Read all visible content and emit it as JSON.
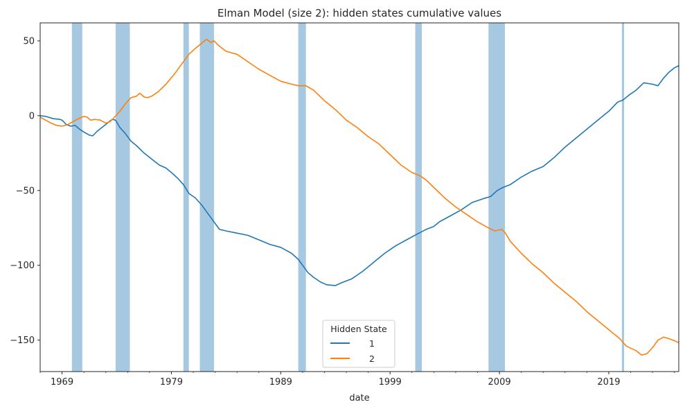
{
  "chart_data": {
    "type": "line",
    "title": "Elman Model (size 2): hidden states cumulative values",
    "xlabel": "date",
    "ylabel": "",
    "xlim": [
      1967.0,
      2025.4
    ],
    "ylim": [
      -171,
      62
    ],
    "x_ticks": [
      1969,
      1979,
      1989,
      1999,
      2009,
      2019
    ],
    "x_tick_labels": [
      "1969",
      "1979",
      "1989",
      "1999",
      "2009",
      "2019"
    ],
    "y_ticks": [
      50,
      0,
      -50,
      -100,
      -150
    ],
    "y_tick_labels": [
      "50",
      "0",
      "−50",
      "−100",
      "−150"
    ],
    "grid": false,
    "legend": {
      "title": "Hidden State",
      "placement": "lower-center"
    },
    "shaded_periods": [
      [
        1969.9,
        1970.85
      ],
      [
        1973.9,
        1975.2
      ],
      [
        1980.1,
        1980.6
      ],
      [
        1981.6,
        1982.9
      ],
      [
        1990.6,
        1991.3
      ],
      [
        2001.3,
        2001.9
      ],
      [
        2008.0,
        2009.5
      ],
      [
        2020.2,
        2020.4
      ]
    ],
    "shade_color": "#a6c8e1",
    "series": [
      {
        "name": "1",
        "color": "#1f77b4",
        "points": [
          [
            1967.0,
            0
          ],
          [
            1967.5,
            -0.5
          ],
          [
            1968.2,
            -2
          ],
          [
            1968.8,
            -2.5
          ],
          [
            1969.0,
            -3
          ],
          [
            1969.4,
            -6
          ],
          [
            1969.8,
            -7
          ],
          [
            1970.2,
            -6.5
          ],
          [
            1970.6,
            -9
          ],
          [
            1971.0,
            -11
          ],
          [
            1971.5,
            -13
          ],
          [
            1971.8,
            -13.5
          ],
          [
            1972.2,
            -10.5
          ],
          [
            1972.8,
            -7
          ],
          [
            1973.3,
            -4
          ],
          [
            1973.6,
            -2.5
          ],
          [
            1973.9,
            -3
          ],
          [
            1974.3,
            -8
          ],
          [
            1974.8,
            -12
          ],
          [
            1975.3,
            -17
          ],
          [
            1975.8,
            -20
          ],
          [
            1976.5,
            -25
          ],
          [
            1977.2,
            -29
          ],
          [
            1977.9,
            -33
          ],
          [
            1978.5,
            -35
          ],
          [
            1979.0,
            -38
          ],
          [
            1979.6,
            -42
          ],
          [
            1980.1,
            -46
          ],
          [
            1980.6,
            -52
          ],
          [
            1981.2,
            -55
          ],
          [
            1981.8,
            -60
          ],
          [
            1982.4,
            -66
          ],
          [
            1982.9,
            -71
          ],
          [
            1983.4,
            -76
          ],
          [
            1984.0,
            -77
          ],
          [
            1985.0,
            -78.5
          ],
          [
            1986.0,
            -80
          ],
          [
            1987.0,
            -83
          ],
          [
            1988.0,
            -86
          ],
          [
            1989.0,
            -88
          ],
          [
            1990.0,
            -92
          ],
          [
            1990.6,
            -96
          ],
          [
            1991.0,
            -100
          ],
          [
            1991.5,
            -105
          ],
          [
            1992.0,
            -108
          ],
          [
            1992.6,
            -111
          ],
          [
            1993.2,
            -113
          ],
          [
            1994.0,
            -113.5
          ],
          [
            1994.6,
            -111.5
          ],
          [
            1995.5,
            -109
          ],
          [
            1996.5,
            -104
          ],
          [
            1997.5,
            -98
          ],
          [
            1998.5,
            -92
          ],
          [
            1999.5,
            -87
          ],
          [
            2000.5,
            -83
          ],
          [
            2001.5,
            -79
          ],
          [
            2002.3,
            -76
          ],
          [
            2003.0,
            -74
          ],
          [
            2003.5,
            -71
          ],
          [
            2004.5,
            -67
          ],
          [
            2005.5,
            -63
          ],
          [
            2006.5,
            -58
          ],
          [
            2007.5,
            -55.5
          ],
          [
            2008.2,
            -54
          ],
          [
            2008.8,
            -50
          ],
          [
            2009.3,
            -48
          ],
          [
            2010.0,
            -46
          ],
          [
            2011.0,
            -41
          ],
          [
            2012.0,
            -37
          ],
          [
            2013.0,
            -34
          ],
          [
            2014.0,
            -28
          ],
          [
            2015.0,
            -21
          ],
          [
            2016.0,
            -15
          ],
          [
            2017.0,
            -9
          ],
          [
            2018.0,
            -3
          ],
          [
            2019.0,
            3
          ],
          [
            2019.8,
            9
          ],
          [
            2020.3,
            10.5
          ],
          [
            2020.8,
            13.5
          ],
          [
            2021.5,
            17
          ],
          [
            2022.2,
            22
          ],
          [
            2023.0,
            21
          ],
          [
            2023.5,
            20
          ],
          [
            2024.0,
            25
          ],
          [
            2024.5,
            29
          ],
          [
            2025.0,
            32
          ],
          [
            2025.3,
            33
          ],
          [
            2025.8,
            35
          ],
          [
            2026.2,
            37
          ]
        ]
      },
      {
        "name": "2",
        "color": "#ff7f0e",
        "points": [
          [
            1967.0,
            -1
          ],
          [
            1967.5,
            -3
          ],
          [
            1968.0,
            -5
          ],
          [
            1968.5,
            -6.5
          ],
          [
            1969.0,
            -7
          ],
          [
            1969.5,
            -6
          ],
          [
            1970.0,
            -4
          ],
          [
            1970.5,
            -2
          ],
          [
            1971.0,
            -0.5
          ],
          [
            1971.3,
            -1
          ],
          [
            1971.6,
            -3
          ],
          [
            1972.0,
            -2.5
          ],
          [
            1972.5,
            -3
          ],
          [
            1973.0,
            -5
          ],
          [
            1973.4,
            -4
          ],
          [
            1973.8,
            -1
          ],
          [
            1974.3,
            3
          ],
          [
            1974.8,
            8
          ],
          [
            1975.3,
            12
          ],
          [
            1975.8,
            13
          ],
          [
            1976.1,
            15
          ],
          [
            1976.5,
            12.5
          ],
          [
            1976.8,
            12
          ],
          [
            1977.2,
            13
          ],
          [
            1977.8,
            16
          ],
          [
            1978.5,
            21
          ],
          [
            1979.3,
            28
          ],
          [
            1980.0,
            35
          ],
          [
            1980.6,
            41
          ],
          [
            1981.2,
            45
          ],
          [
            1981.7,
            48
          ],
          [
            1982.2,
            51
          ],
          [
            1982.6,
            49
          ],
          [
            1982.9,
            50
          ],
          [
            1983.3,
            47
          ],
          [
            1984.0,
            43
          ],
          [
            1985.0,
            41
          ],
          [
            1986.0,
            36
          ],
          [
            1987.0,
            31
          ],
          [
            1988.0,
            27
          ],
          [
            1989.0,
            23
          ],
          [
            1990.0,
            21
          ],
          [
            1990.6,
            20
          ],
          [
            1991.3,
            20
          ],
          [
            1992.0,
            17
          ],
          [
            1993.0,
            10
          ],
          [
            1994.0,
            4
          ],
          [
            1995.0,
            -3
          ],
          [
            1996.0,
            -8
          ],
          [
            1997.0,
            -14
          ],
          [
            1998.0,
            -19
          ],
          [
            1999.0,
            -26
          ],
          [
            2000.0,
            -33
          ],
          [
            2001.0,
            -38
          ],
          [
            2001.7,
            -40
          ],
          [
            2002.3,
            -43
          ],
          [
            2003.0,
            -48
          ],
          [
            2004.0,
            -55
          ],
          [
            2005.0,
            -61
          ],
          [
            2006.0,
            -66
          ],
          [
            2007.0,
            -71
          ],
          [
            2008.0,
            -75
          ],
          [
            2008.6,
            -77
          ],
          [
            2009.2,
            -76
          ],
          [
            2009.5,
            -78
          ],
          [
            2010.0,
            -84
          ],
          [
            2011.0,
            -92
          ],
          [
            2012.0,
            -99
          ],
          [
            2013.0,
            -105
          ],
          [
            2014.0,
            -112
          ],
          [
            2015.0,
            -118
          ],
          [
            2016.0,
            -124
          ],
          [
            2017.0,
            -131
          ],
          [
            2018.0,
            -137
          ],
          [
            2019.0,
            -143
          ],
          [
            2020.0,
            -149
          ],
          [
            2020.6,
            -154
          ],
          [
            2021.5,
            -157
          ],
          [
            2022.0,
            -160
          ],
          [
            2022.5,
            -159
          ],
          [
            2023.0,
            -155
          ],
          [
            2023.5,
            -150
          ],
          [
            2024.0,
            -148
          ],
          [
            2024.5,
            -149
          ],
          [
            2025.2,
            -151
          ],
          [
            2025.8,
            -153
          ],
          [
            2026.2,
            -154
          ]
        ]
      }
    ]
  }
}
